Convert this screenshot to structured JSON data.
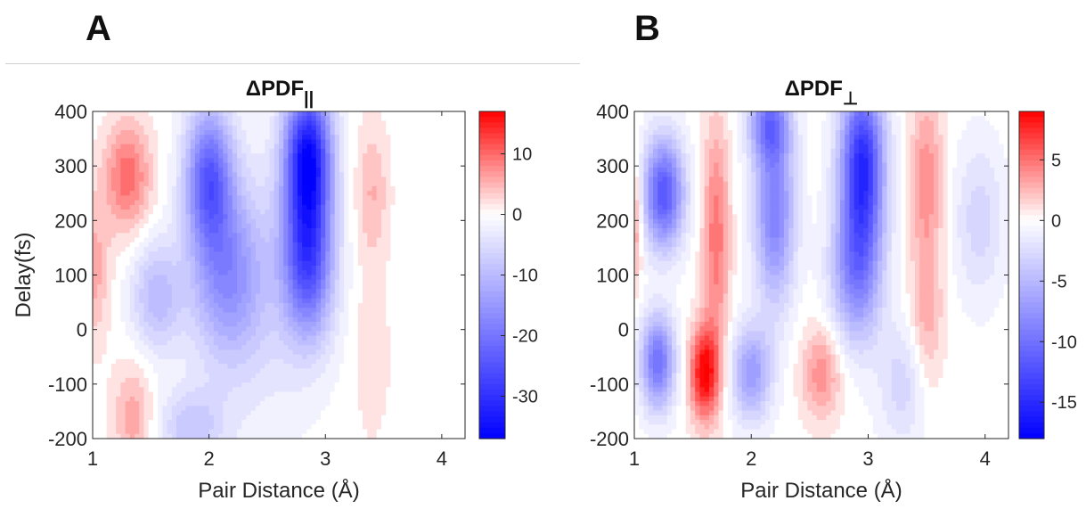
{
  "chart_data": [
    {
      "panel_label": "A",
      "type": "heatmap",
      "subtype": "filled-contour",
      "title_base": "ΔPDF",
      "title_subscript": "||",
      "xlabel": "Pair Distance (Å)",
      "ylabel": "Delay(fs)",
      "xlim": [
        1,
        4.2
      ],
      "ylim": [
        -200,
        400
      ],
      "xticks": [
        1,
        2,
        3,
        4
      ],
      "yticks": [
        -200,
        -100,
        0,
        100,
        200,
        300,
        400
      ],
      "colorbar": {
        "min": -37,
        "max": 17,
        "ticks": [
          10,
          0,
          -10,
          -20,
          -30
        ],
        "colormap": [
          "#0000ff",
          "#ffffff",
          "#ff0000"
        ]
      },
      "features": [
        {
          "x": 1.3,
          "y": 280,
          "value": 10,
          "sx": 0.14,
          "sy": 70
        },
        {
          "x": 1.0,
          "y": 110,
          "value": 6,
          "sx": 0.1,
          "sy": 90
        },
        {
          "x": 1.35,
          "y": -160,
          "value": 6,
          "sx": 0.12,
          "sy": 70
        },
        {
          "x": 2.0,
          "y": 280,
          "value": -22,
          "sx": 0.14,
          "sy": 90
        },
        {
          "x": 2.15,
          "y": 100,
          "value": -14,
          "sx": 0.22,
          "sy": 110
        },
        {
          "x": 2.85,
          "y": 320,
          "value": -33,
          "sx": 0.14,
          "sy": 90
        },
        {
          "x": 2.85,
          "y": 130,
          "value": -25,
          "sx": 0.15,
          "sy": 100
        },
        {
          "x": 1.55,
          "y": 60,
          "value": -10,
          "sx": 0.15,
          "sy": 70
        },
        {
          "x": 1.85,
          "y": -180,
          "value": -8,
          "sx": 0.2,
          "sy": 50
        },
        {
          "x": 3.4,
          "y": 250,
          "value": 5,
          "sx": 0.1,
          "sy": 90
        },
        {
          "x": 3.4,
          "y": -50,
          "value": 3,
          "sx": 0.1,
          "sy": 100
        },
        {
          "x": 2.45,
          "y": 60,
          "value": -4,
          "sx": 0.35,
          "sy": 180
        }
      ]
    },
    {
      "panel_label": "B",
      "type": "heatmap",
      "subtype": "filled-contour",
      "title_base": "ΔPDF",
      "title_subscript": "⊥",
      "xlabel": "Pair Distance (Å)",
      "ylabel": "",
      "xlim": [
        1,
        4.2
      ],
      "ylim": [
        -200,
        400
      ],
      "xticks": [
        1,
        2,
        3,
        4
      ],
      "yticks": [
        -200,
        -100,
        0,
        100,
        200,
        300,
        400
      ],
      "colorbar": {
        "min": -18,
        "max": 9,
        "ticks": [
          5,
          0,
          -5,
          -10,
          -15
        ],
        "colormap": [
          "#0000ff",
          "#ffffff",
          "#ff0000"
        ]
      },
      "features": [
        {
          "x": 1.25,
          "y": 250,
          "value": -12,
          "sx": 0.12,
          "sy": 70
        },
        {
          "x": 1.2,
          "y": -60,
          "value": -10,
          "sx": 0.1,
          "sy": 60
        },
        {
          "x": 1.6,
          "y": -80,
          "value": 9,
          "sx": 0.09,
          "sy": 60
        },
        {
          "x": 1.7,
          "y": 170,
          "value": 5,
          "sx": 0.08,
          "sy": 150
        },
        {
          "x": 2.0,
          "y": -80,
          "value": -7,
          "sx": 0.12,
          "sy": 60
        },
        {
          "x": 2.2,
          "y": 220,
          "value": -9,
          "sx": 0.12,
          "sy": 120
        },
        {
          "x": 2.15,
          "y": 380,
          "value": -8,
          "sx": 0.12,
          "sy": 50
        },
        {
          "x": 2.95,
          "y": 300,
          "value": -15,
          "sx": 0.13,
          "sy": 110
        },
        {
          "x": 2.9,
          "y": 100,
          "value": -8,
          "sx": 0.15,
          "sy": 90
        },
        {
          "x": 2.6,
          "y": -80,
          "value": 4,
          "sx": 0.12,
          "sy": 60
        },
        {
          "x": 3.5,
          "y": 280,
          "value": 4,
          "sx": 0.1,
          "sy": 110
        },
        {
          "x": 3.5,
          "y": 20,
          "value": 3,
          "sx": 0.1,
          "sy": 100
        },
        {
          "x": 3.3,
          "y": -100,
          "value": -3,
          "sx": 0.15,
          "sy": 80
        },
        {
          "x": 1.0,
          "y": 200,
          "value": 4,
          "sx": 0.05,
          "sy": 80
        },
        {
          "x": 3.95,
          "y": 200,
          "value": -3,
          "sx": 0.15,
          "sy": 100
        }
      ]
    }
  ]
}
